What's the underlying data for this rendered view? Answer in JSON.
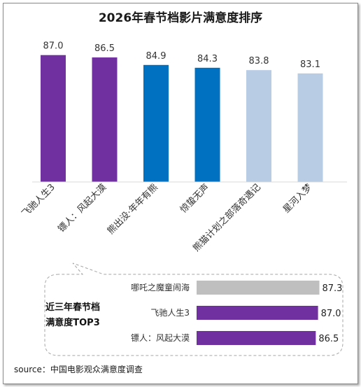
{
  "chart_data": [
    {
      "type": "bar",
      "title": "2026年春节档影片满意度排序",
      "categories": [
        "飞驰人生3",
        "镖人：风起大漠",
        "熊出没·年年有熊",
        "惊蛰无声",
        "熊猫计划之部落奇遇记",
        "星河入梦"
      ],
      "values": [
        87.0,
        86.5,
        84.9,
        84.3,
        83.8,
        83.1
      ],
      "value_labels": [
        "87.0",
        "86.5",
        "84.9",
        "84.3",
        "83.8",
        "83.1"
      ],
      "colors": [
        "#7030a0",
        "#7030a0",
        "#0070c0",
        "#0070c0",
        "#b8cce4",
        "#b8cce4"
      ],
      "ylim": [
        60,
        88
      ],
      "grid": false,
      "legend": "none"
    },
    {
      "type": "bar",
      "orientation": "horizontal",
      "title_lines": [
        "近三年春节档",
        "满意度TOP3"
      ],
      "categories": [
        "哪吒之魔童闹海",
        "飞驰人生3",
        "镖人：风起大漠"
      ],
      "values": [
        87.3,
        87.0,
        86.5
      ],
      "value_labels": [
        "87.3",
        "87.0",
        "86.5"
      ],
      "colors": [
        "#bfbfbf",
        "#7030a0",
        "#7030a0"
      ],
      "xlim": [
        60,
        88
      ]
    }
  ],
  "source": "source：中国电影观众满意度调查"
}
